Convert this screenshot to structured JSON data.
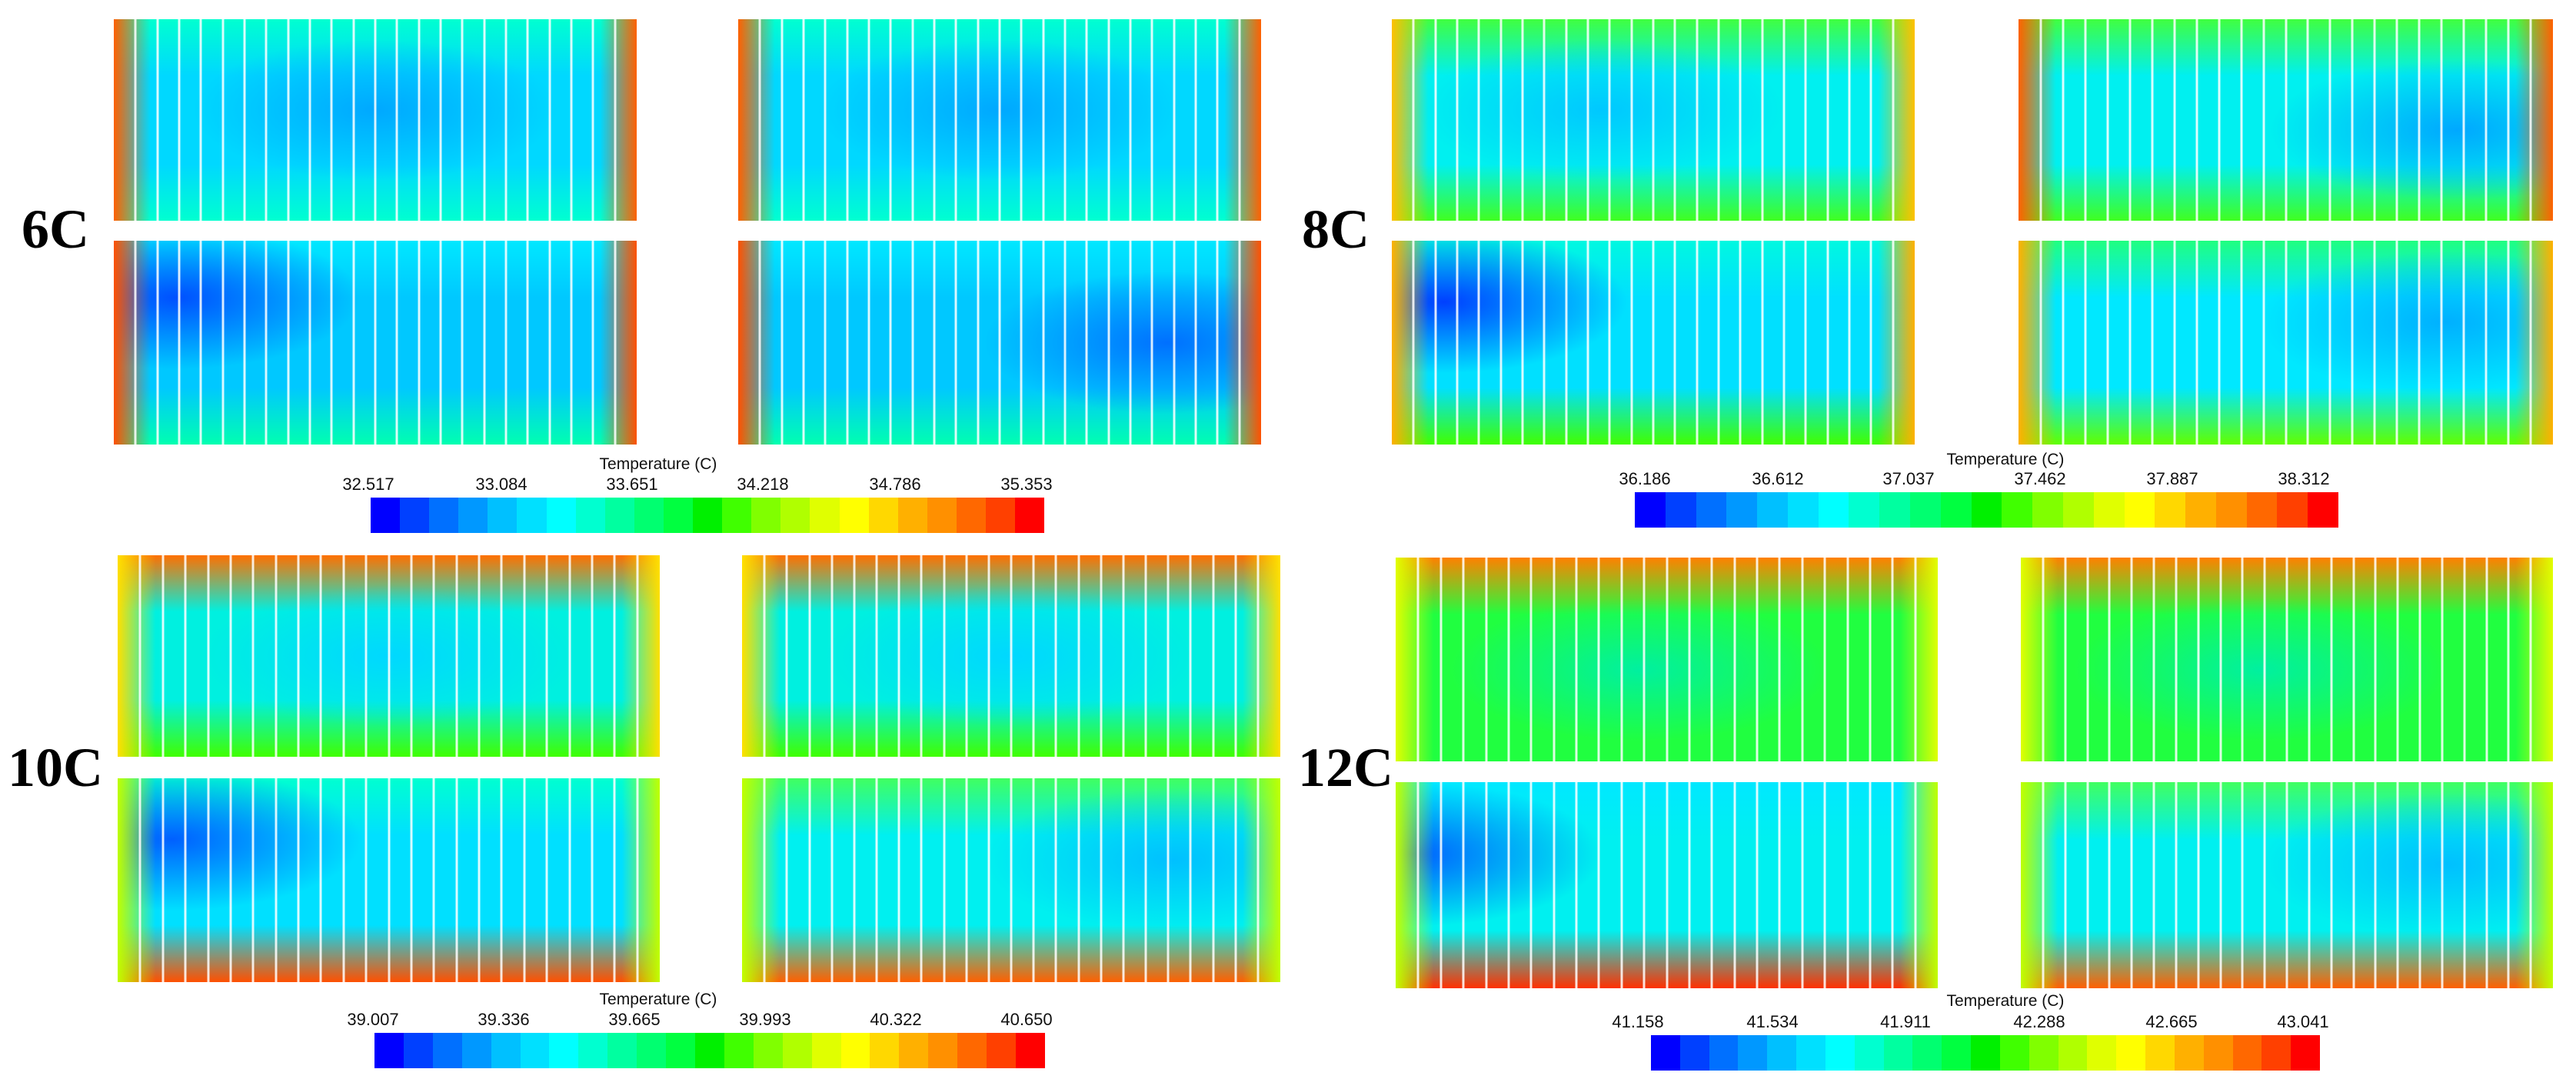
{
  "cases": [
    {
      "label": "6C",
      "colorbar": {
        "title": "Temperature (C)",
        "ticks": [
          "32.517",
          "33.084",
          "33.651",
          "34.218",
          "34.786",
          "35.353"
        ]
      }
    },
    {
      "label": "8C",
      "colorbar": {
        "title": "Temperature (C)",
        "ticks": [
          "36.186",
          "36.612",
          "37.037",
          "37.462",
          "37.887",
          "38.312"
        ]
      }
    },
    {
      "label": "10C",
      "colorbar": {
        "title": "Temperature (C)",
        "ticks": [
          "39.007",
          "39.336",
          "39.665",
          "39.993",
          "40.322",
          "40.650"
        ]
      }
    },
    {
      "label": "12C",
      "colorbar": {
        "title": "Temperature (C)",
        "ticks": [
          "41.158",
          "41.534",
          "41.911",
          "42.288",
          "42.665",
          "43.041"
        ]
      }
    }
  ],
  "colors": {
    "scale": [
      "#0000ff",
      "#0040ff",
      "#0070ff",
      "#0098ff",
      "#00c0ff",
      "#00e0ff",
      "#00ffff",
      "#00ffd0",
      "#00ffa0",
      "#00ff70",
      "#00ff40",
      "#00f000",
      "#40ff00",
      "#80ff00",
      "#b0ff00",
      "#e0ff00",
      "#ffff00",
      "#ffd800",
      "#ffb000",
      "#ff9000",
      "#ff6800",
      "#ff4000",
      "#ff0000"
    ]
  }
}
